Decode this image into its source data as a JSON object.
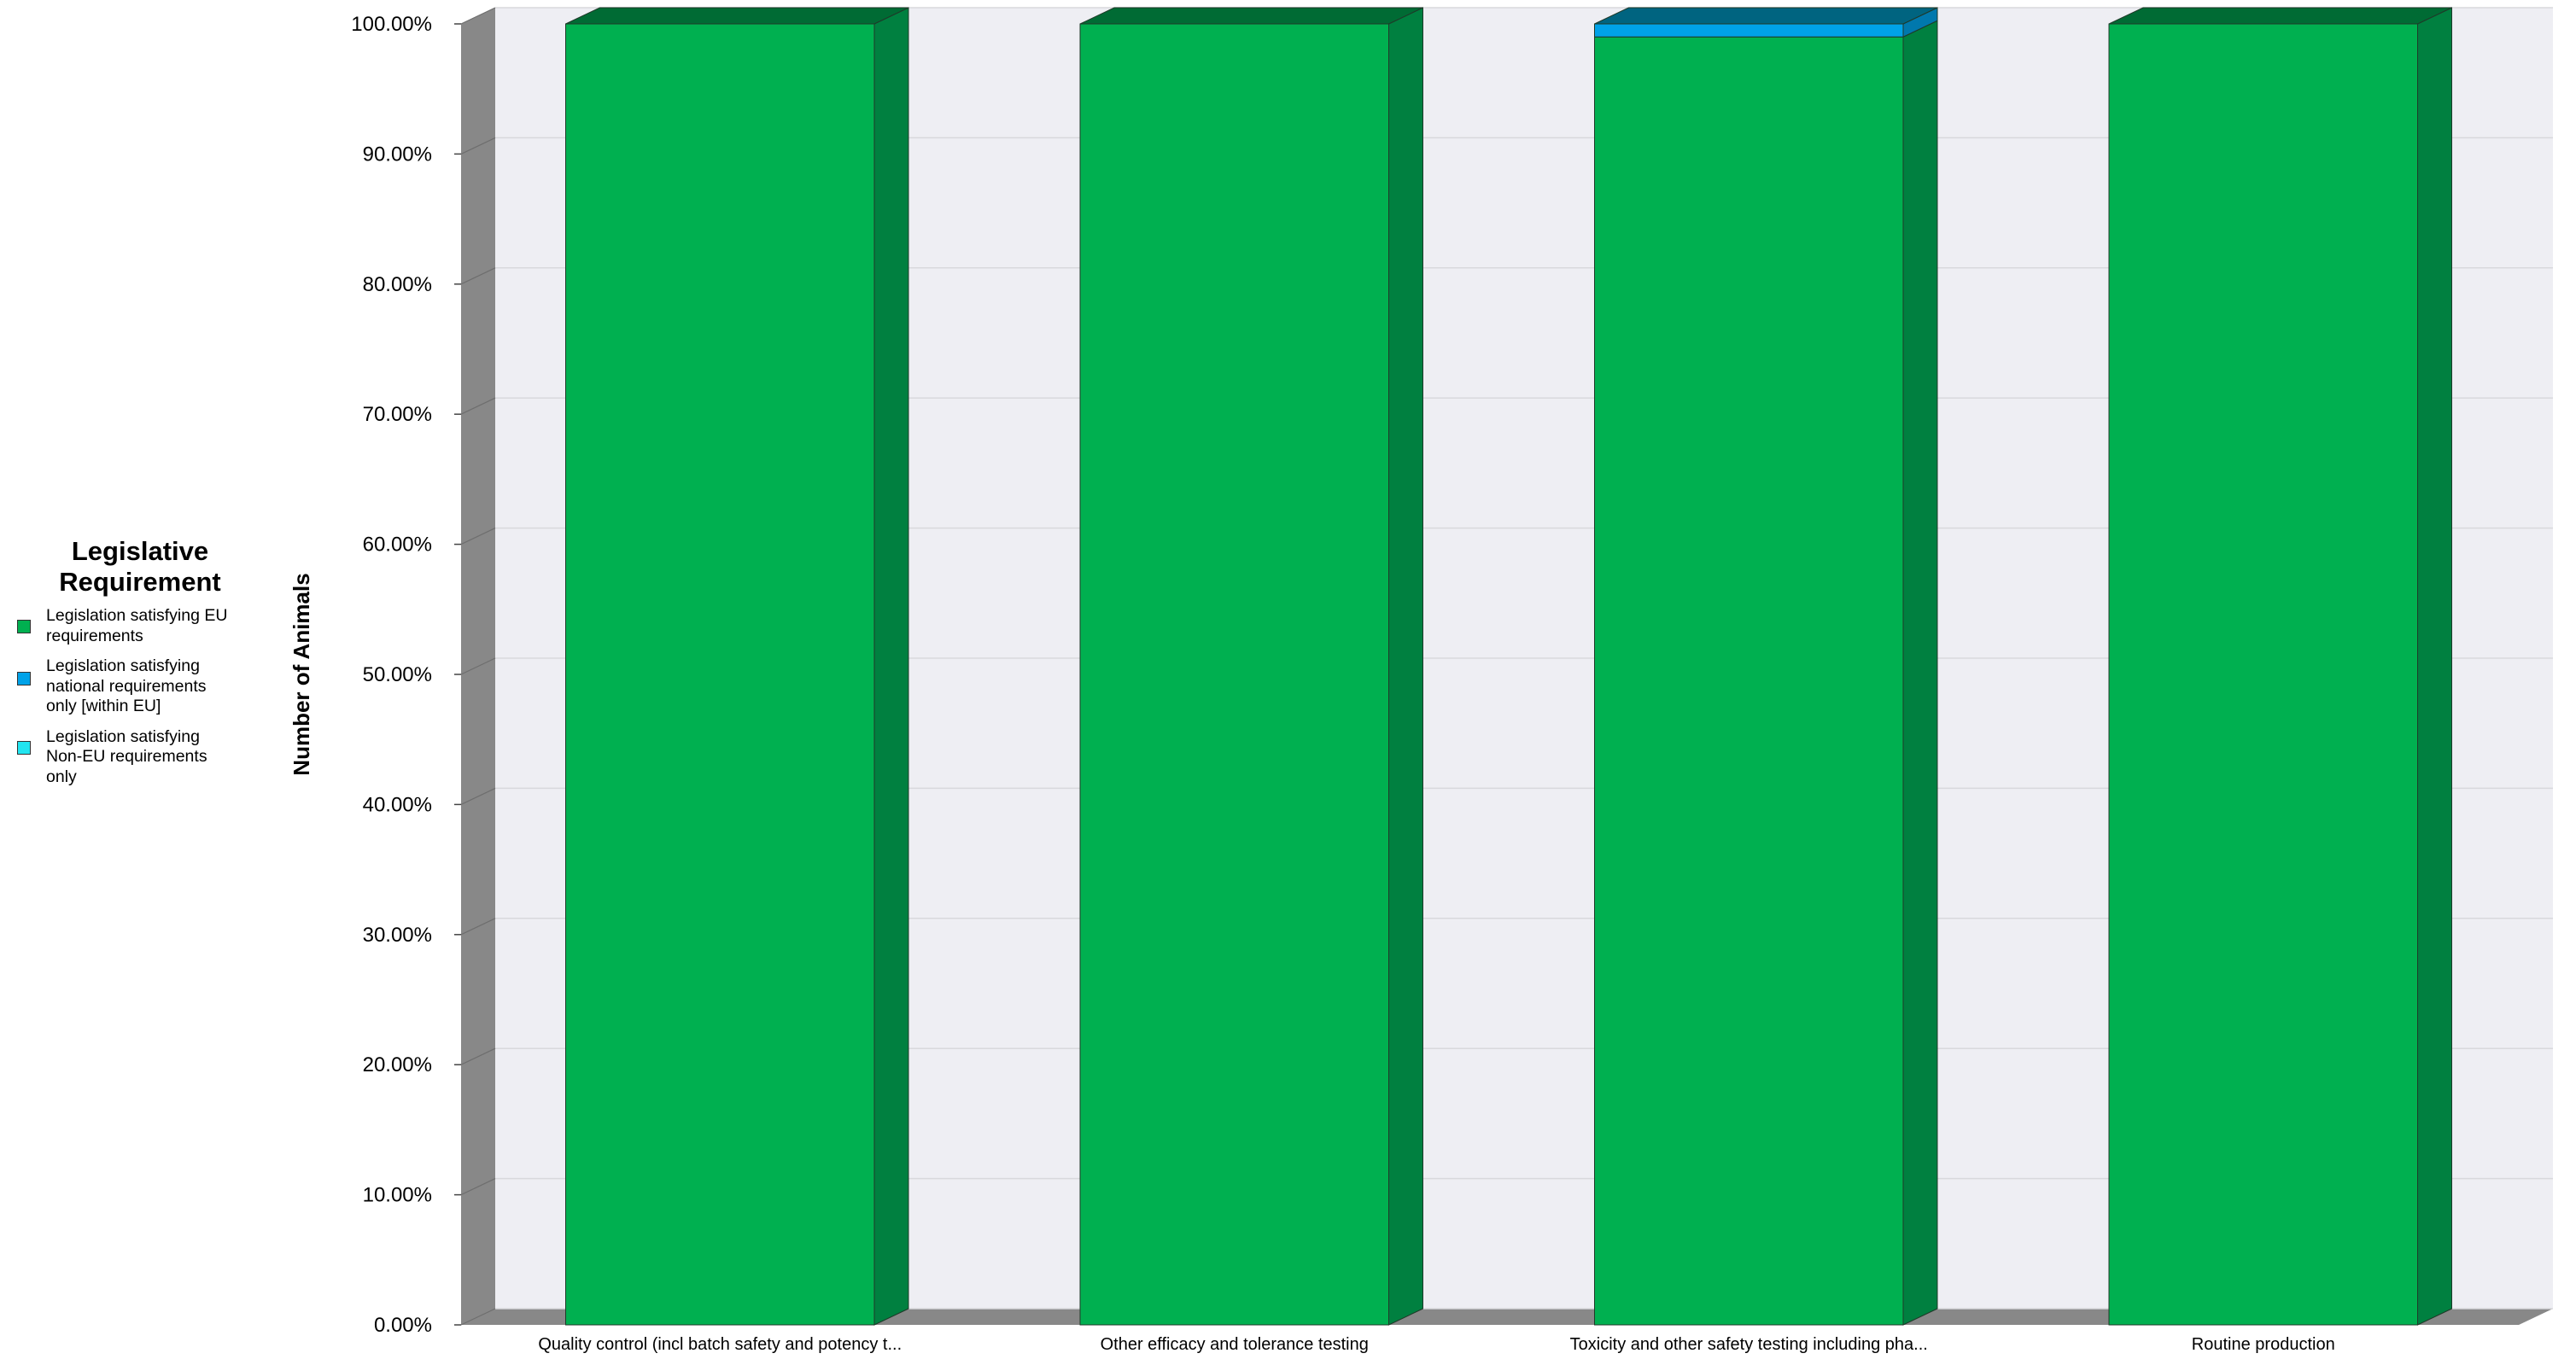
{
  "legend": {
    "title_line1": "Legislative",
    "title_line2": "Requirement",
    "items": [
      {
        "label_lines": [
          "Legislation satisfying EU",
          "requirements"
        ],
        "color": "#00b050"
      },
      {
        "label_lines": [
          "Legislation satisfying",
          "national requirements",
          "only [within EU]"
        ],
        "color": "#00a2e8"
      },
      {
        "label_lines": [
          "Legislation satisfying",
          "Non-EU requirements",
          "only"
        ],
        "color": "#22e5f0"
      }
    ]
  },
  "colors": {
    "wall": "#eeeef3",
    "wall_side": "#888888",
    "gridline": "#d8d8dc",
    "series_front": [
      "#00b050",
      "#00a2e8",
      "#22e5f0"
    ],
    "series_side": [
      "#008040",
      "#0078ad",
      "#18aab2"
    ],
    "series_top": [
      "#006b34",
      "#006480",
      "#139099"
    ]
  },
  "chart_data": {
    "type": "bar",
    "stacked": true,
    "three_d": true,
    "title": "",
    "xlabel": "",
    "ylabel": "Number of Animals",
    "ylim": [
      0,
      100
    ],
    "yticks": [
      "0.00%",
      "10.00%",
      "20.00%",
      "30.00%",
      "40.00%",
      "50.00%",
      "60.00%",
      "70.00%",
      "80.00%",
      "90.00%",
      "100.00%"
    ],
    "categories": [
      "Quality control (incl batch safety and potency t...",
      "Other efficacy and tolerance testing",
      "Toxicity and other safety testing including  pha...",
      "Routine production"
    ],
    "series": [
      {
        "name": "Legislation satisfying EU requirements",
        "values": [
          100,
          100,
          99,
          100
        ]
      },
      {
        "name": "Legislation satisfying national requirements only [within EU]",
        "values": [
          0,
          0,
          1,
          0
        ]
      },
      {
        "name": "Legislation satisfying Non-EU requirements only",
        "values": [
          0,
          0,
          0,
          0
        ]
      }
    ],
    "grid": true,
    "legend_position": "left"
  }
}
